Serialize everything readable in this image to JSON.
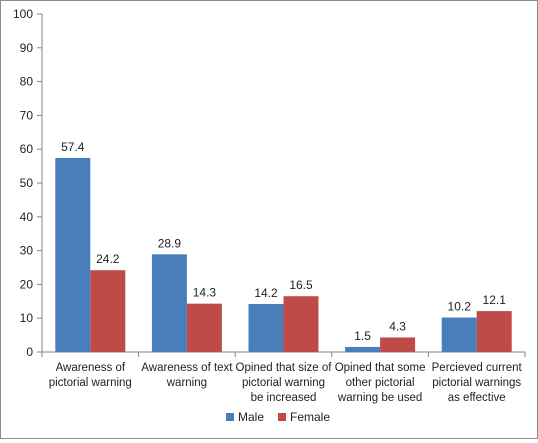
{
  "chart_data": {
    "type": "bar",
    "title": "",
    "xlabel": "",
    "ylabel": "",
    "ylim": [
      0,
      100
    ],
    "yticks": [
      0,
      10,
      20,
      30,
      40,
      50,
      60,
      70,
      80,
      90,
      100
    ],
    "grid": false,
    "legend_position": "bottom",
    "categories": [
      [
        "Awareness of",
        "pictorial warning"
      ],
      [
        "Awareness of text",
        "warning"
      ],
      [
        "Opined that size of",
        "pictorial warning",
        "be increased"
      ],
      [
        "Opined that some",
        "other pictorial",
        "warning be used"
      ],
      [
        "Percieved current",
        "pictorial warnings",
        "as effective"
      ]
    ],
    "series": [
      {
        "name": "Male",
        "color": "#4a7ebb",
        "values": [
          57.4,
          28.9,
          14.2,
          1.5,
          10.2
        ]
      },
      {
        "name": "Female",
        "color": "#be4b48",
        "values": [
          24.2,
          14.3,
          16.5,
          4.3,
          12.1
        ]
      }
    ]
  }
}
